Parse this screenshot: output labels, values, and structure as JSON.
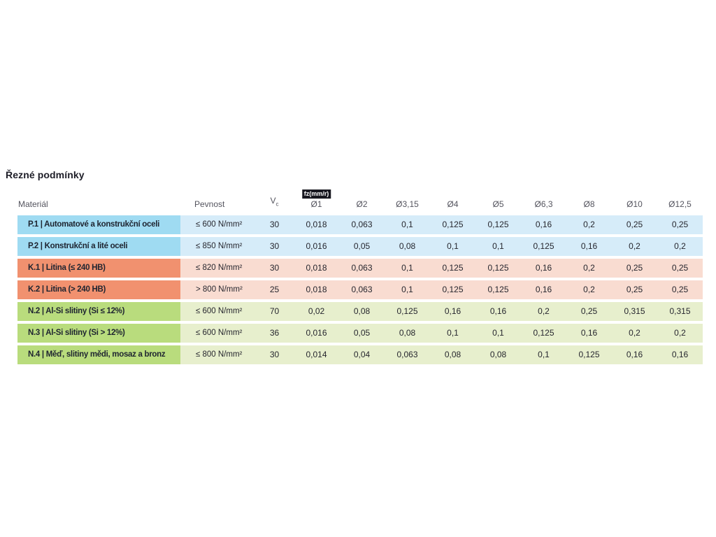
{
  "page": {
    "title": "Řezné podmínky"
  },
  "table": {
    "headers": {
      "material": "Materiál",
      "strength": "Pevnost",
      "vc_main": "V",
      "vc_sub": "c",
      "fz_badge": "fz(mm/r)",
      "diameters": [
        "Ø1",
        "Ø2",
        "Ø3,15",
        "Ø4",
        "Ø5",
        "Ø6,3",
        "Ø8",
        "Ø10",
        "Ø12,5"
      ]
    },
    "group_colors": {
      "blue": {
        "dark": "#9fdbf2",
        "light": "#d6ecf9"
      },
      "orange": {
        "dark": "#f1916f",
        "light": "#f9dcd1"
      },
      "green": {
        "dark": "#b9dc7d",
        "light": "#e7efcd"
      }
    },
    "rows": [
      {
        "group": "blue",
        "material": "P.1 | Automatové a konstrukční oceli",
        "strength": "≤ 600 N/mm²",
        "vc": "30",
        "values": [
          "0,018",
          "0,063",
          "0,1",
          "0,125",
          "0,125",
          "0,16",
          "0,2",
          "0,25",
          "0,25"
        ]
      },
      {
        "group": "blue",
        "material": "P.2 | Konstrukční a lité oceli",
        "strength": "≤ 850 N/mm²",
        "vc": "30",
        "values": [
          "0,016",
          "0,05",
          "0,08",
          "0,1",
          "0,1",
          "0,125",
          "0,16",
          "0,2",
          "0,2"
        ]
      },
      {
        "group": "orange",
        "material": "K.1 | Litina (≤ 240 HB)",
        "strength": "≤ 820 N/mm²",
        "vc": "30",
        "values": [
          "0,018",
          "0,063",
          "0,1",
          "0,125",
          "0,125",
          "0,16",
          "0,2",
          "0,25",
          "0,25"
        ]
      },
      {
        "group": "orange",
        "material": "K.2 | Litina (> 240 HB)",
        "strength": "> 800 N/mm²",
        "vc": "25",
        "values": [
          "0,018",
          "0,063",
          "0,1",
          "0,125",
          "0,125",
          "0,16",
          "0,2",
          "0,25",
          "0,25"
        ]
      },
      {
        "group": "green",
        "material": "N.2 | Al-Si slitiny (Si ≤ 12%)",
        "strength": "≤ 600 N/mm²",
        "vc": "70",
        "values": [
          "0,02",
          "0,08",
          "0,125",
          "0,16",
          "0,16",
          "0,2",
          "0,25",
          "0,315",
          "0,315"
        ]
      },
      {
        "group": "green",
        "material": "N.3 | Al-Si slitiny (Si > 12%)",
        "strength": "≤ 600 N/mm²",
        "vc": "36",
        "values": [
          "0,016",
          "0,05",
          "0,08",
          "0,1",
          "0,1",
          "0,125",
          "0,16",
          "0,2",
          "0,2"
        ]
      },
      {
        "group": "green",
        "material": "N.4 | Měď, slitiny mědi, mosaz a bronz",
        "strength": "≤ 800 N/mm²",
        "vc": "30",
        "values": [
          "0,014",
          "0,04",
          "0,063",
          "0,08",
          "0,08",
          "0,1",
          "0,125",
          "0,16",
          "0,16"
        ]
      }
    ]
  }
}
